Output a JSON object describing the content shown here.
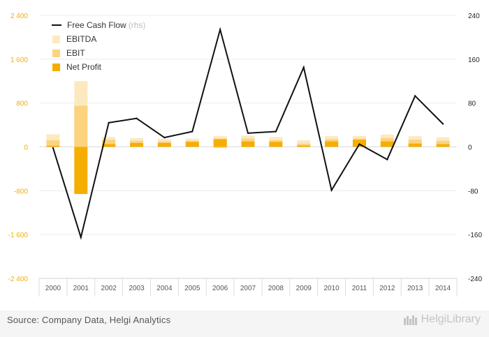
{
  "source_text": "Source: Company Data, Helgi Analytics",
  "brand_text": "HelgiLibrary",
  "legend": {
    "fcf": "Free Cash Flow",
    "fcf_suffix": "(rhs)",
    "ebitda": "EBITDA",
    "ebit": "EBIT",
    "net_profit": "Net Profit"
  },
  "chart_data": {
    "type": "bar",
    "categories": [
      "2000",
      "2001",
      "2002",
      "2003",
      "2004",
      "2005",
      "2006",
      "2007",
      "2008",
      "2009",
      "2010",
      "2011",
      "2012",
      "2013",
      "2014"
    ],
    "series": [
      {
        "name": "EBITDA",
        "kind": "bar",
        "axis": "left",
        "color": "#fde9c0",
        "values": [
          230,
          1200,
          180,
          160,
          145,
          150,
          200,
          205,
          180,
          120,
          195,
          200,
          225,
          195,
          175
        ]
      },
      {
        "name": "EBIT",
        "kind": "bar",
        "axis": "left",
        "color": "#fcd37f",
        "values": [
          120,
          750,
          130,
          110,
          100,
          110,
          150,
          150,
          120,
          60,
          140,
          150,
          160,
          130,
          110
        ]
      },
      {
        "name": "Net Profit",
        "kind": "bar",
        "axis": "left",
        "color": "#f5ae00",
        "values": [
          20,
          -860,
          50,
          70,
          70,
          90,
          140,
          100,
          90,
          25,
          100,
          130,
          100,
          60,
          50
        ]
      },
      {
        "name": "Free Cash Flow",
        "kind": "line",
        "axis": "right",
        "color": "#111111",
        "values": [
          -2,
          -165,
          44,
          52,
          17,
          28,
          214,
          25,
          28,
          145,
          -79,
          5,
          -23,
          93,
          42
        ]
      }
    ],
    "negatives": {
      "EBIT": [
        null,
        null,
        null,
        null,
        null,
        null,
        -20,
        null,
        null,
        null,
        null,
        null,
        null,
        null,
        null
      ]
    },
    "y_left": {
      "min": -2400,
      "max": 2400,
      "ticks": [
        2400,
        1600,
        800,
        0,
        -800,
        -1600,
        -2400
      ],
      "tick_labels": [
        "2 400",
        "1 600",
        "800",
        "0",
        "-800",
        "-1 600",
        "-2 400"
      ],
      "color": "#f5ae00"
    },
    "y_right": {
      "min": -240,
      "max": 240,
      "ticks": [
        240,
        160,
        80,
        0,
        -80,
        -160,
        -240
      ],
      "tick_labels": [
        "240",
        "160",
        "80",
        "0",
        "-80",
        "-160",
        "-240"
      ],
      "color": "#222222"
    },
    "grid": true,
    "legend_position": "top-left"
  }
}
